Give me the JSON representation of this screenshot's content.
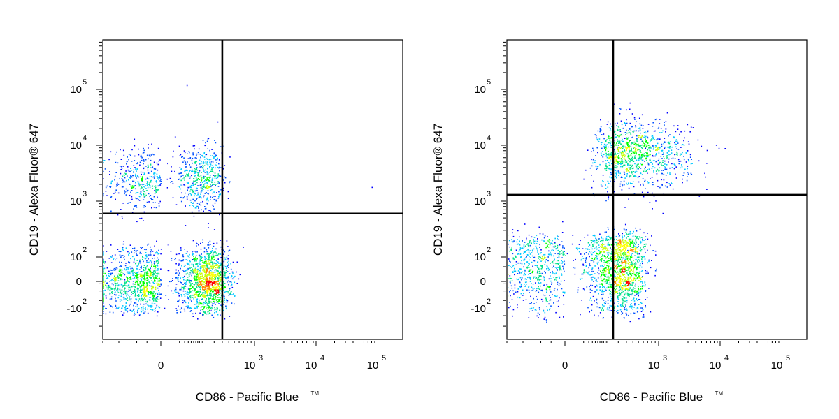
{
  "chart_data": [
    {
      "type": "scatter",
      "xlabel": "CD86 - Pacific Blue",
      "xlabel_mark": "TM",
      "ylabel": "CD19 - Alexa Fluor® 647",
      "x_scale": "biexponential",
      "y_scale": "biexponential",
      "xlim": [
        -300,
        100000
      ],
      "ylim": [
        -700,
        800000
      ],
      "x_ticks": [
        {
          "base": "0",
          "exp": ""
        },
        {
          "base": "10",
          "exp": "3"
        },
        {
          "base": "10",
          "exp": "4"
        },
        {
          "base": "10",
          "exp": "5"
        }
      ],
      "y_ticks": [
        {
          "base": "10",
          "exp": "5"
        },
        {
          "base": "10",
          "exp": "4"
        },
        {
          "base": "10",
          "exp": "3"
        },
        {
          "base": "10",
          "exp": "2"
        },
        {
          "base": "0",
          "exp": ""
        },
        {
          "base": "-10",
          "exp": "2"
        }
      ],
      "quadrant_gate": {
        "x": 300,
        "y": 600
      },
      "colormap": [
        "#0000ff",
        "#00c8ff",
        "#00ff00",
        "#ffff00",
        "#ff0000"
      ],
      "populations": [
        {
          "x_center": 20,
          "x_spread": 130,
          "y_center": 2500,
          "y_spread": 0.3,
          "relative_size": 0.28
        },
        {
          "x_center": 30,
          "x_spread": 180,
          "y_center": 0,
          "y_spread": 70,
          "relative_size": 0.72
        }
      ],
      "outlier_points": [
        {
          "x": 80000,
          "y": 1800
        },
        {
          "x": 25,
          "y": 120000
        }
      ]
    },
    {
      "type": "scatter",
      "xlabel": "CD86 - Pacific Blue",
      "xlabel_mark": "TM",
      "ylabel": "CD19 - Alexa Fluor® 647",
      "x_scale": "biexponential",
      "y_scale": "biexponential",
      "xlim": [
        -300,
        100000
      ],
      "ylim": [
        -700,
        800000
      ],
      "x_ticks": [
        {
          "base": "0",
          "exp": ""
        },
        {
          "base": "10",
          "exp": "3"
        },
        {
          "base": "10",
          "exp": "4"
        },
        {
          "base": "10",
          "exp": "5"
        }
      ],
      "y_ticks": [
        {
          "base": "10",
          "exp": "5"
        },
        {
          "base": "10",
          "exp": "4"
        },
        {
          "base": "10",
          "exp": "3"
        },
        {
          "base": "10",
          "exp": "2"
        },
        {
          "base": "0",
          "exp": ""
        },
        {
          "base": "-10",
          "exp": "2"
        }
      ],
      "quadrant_gate": {
        "x": 150,
        "y": 1300
      },
      "colormap": [
        "#0000ff",
        "#00c8ff",
        "#00ff00",
        "#ffff00",
        "#ff0000"
      ],
      "populations": [
        {
          "x_center": 400,
          "x_spread": 0.45,
          "y_center": 7000,
          "y_spread": 0.3,
          "relative_size": 0.33
        },
        {
          "x_center": 100,
          "x_spread": 250,
          "y_center": 60,
          "y_spread": 100,
          "relative_size": 0.67
        }
      ],
      "outlier_points": []
    }
  ]
}
